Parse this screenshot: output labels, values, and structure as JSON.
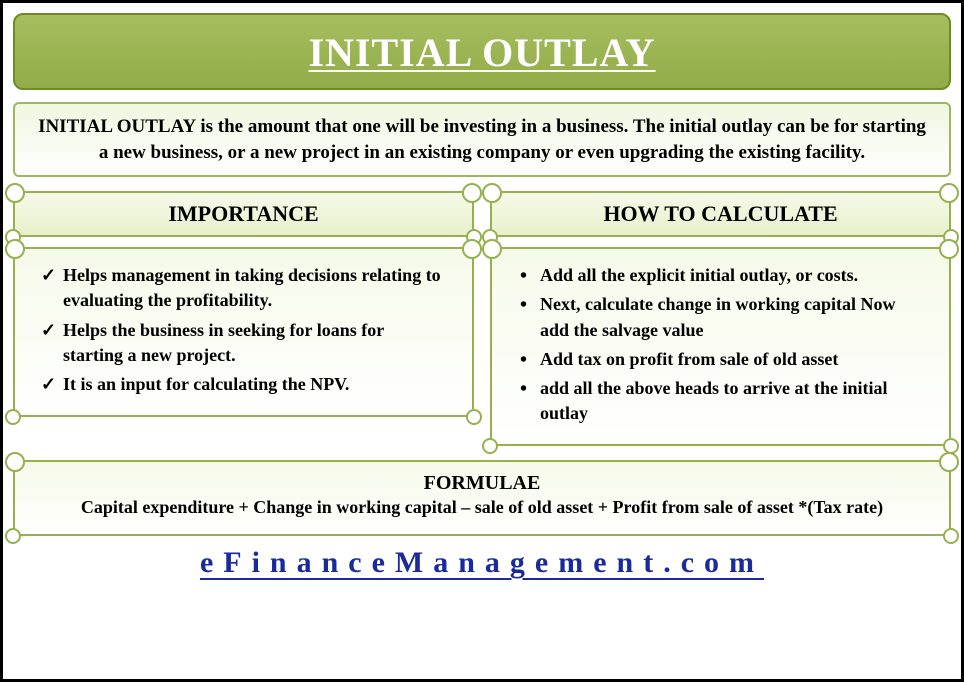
{
  "title": "INITIAL OUTLAY",
  "definition": "INITIAL OUTLAY is the amount that one will be investing in a business. The initial outlay can be for starting a new business, or a new project in an existing company or even upgrading the existing facility.",
  "sections": {
    "importance": {
      "heading": "IMPORTANCE",
      "items": [
        "Helps management in taking decisions relating to evaluating the profitability.",
        "Helps the business in seeking for loans for starting a new project.",
        "It is an input for calculating the NPV."
      ]
    },
    "calculate": {
      "heading": "HOW TO CALCULATE",
      "items": [
        "Add all the explicit initial outlay, or costs.",
        "Next, calculate change in working capital Now add the salvage value",
        "Add tax on profit from sale of old asset",
        "add all the above heads to arrive at the initial outlay"
      ]
    }
  },
  "formulae": {
    "label": "FORMULAE",
    "expression": "Capital expenditure + Change in working capital – sale of old asset + Profit from sale of asset *(Tax rate)"
  },
  "site": "eFinanceManagement.com",
  "colors": {
    "banner_bg_top": "#a7be5f",
    "banner_bg_bottom": "#91ac48",
    "border_green": "#95b14e",
    "box_grad_top": "#f6fae9",
    "link_color": "#1a2a9c",
    "frame_border": "#000000"
  }
}
